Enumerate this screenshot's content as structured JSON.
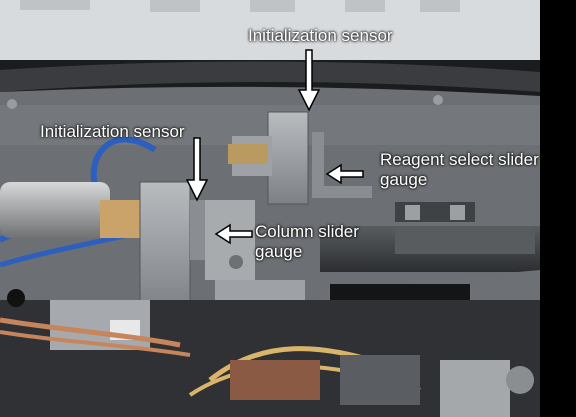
{
  "labels": {
    "init_sensor_top": "Initialization sensor",
    "init_sensor_left": "Initialization sensor",
    "reagent_gauge": "Reagent select slider gauge",
    "column_gauge": "Column slider gauge"
  },
  "colors": {
    "label_text": "#ffffff",
    "arrow_fill": "#ffffff",
    "arrow_stroke": "#000000"
  }
}
